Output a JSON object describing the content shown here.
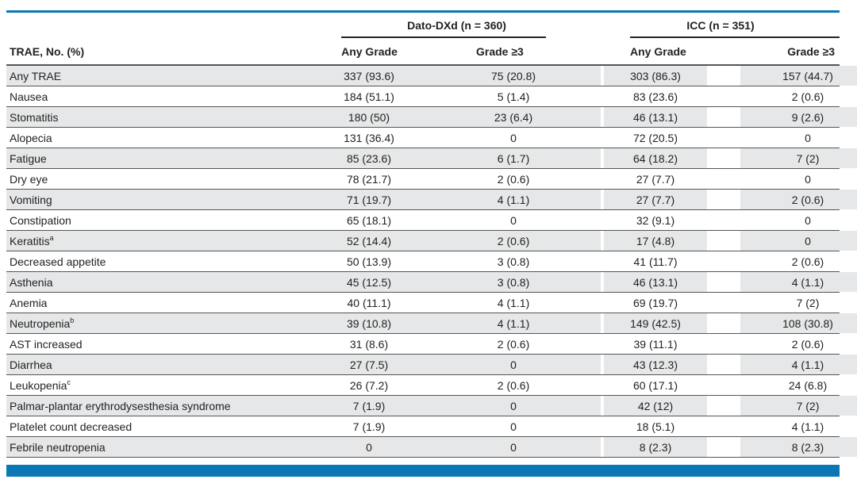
{
  "table": {
    "groups": [
      {
        "label": "Dato-DXd (n = 360)"
      },
      {
        "label": "ICC (n = 351)"
      }
    ],
    "columns": [
      "TRAE, No. (%)",
      "Any Grade",
      "Grade ≥3",
      "Any Grade",
      "Grade ≥3"
    ],
    "rows": [
      {
        "label": "Any TRAE",
        "sup": "",
        "values": [
          "337 (93.6)",
          "75 (20.8)",
          "303 (86.3)",
          "157 (44.7)"
        ]
      },
      {
        "label": "Nausea",
        "sup": "",
        "values": [
          "184 (51.1)",
          "5 (1.4)",
          "83 (23.6)",
          "2 (0.6)"
        ]
      },
      {
        "label": "Stomatitis",
        "sup": "",
        "values": [
          "180 (50)",
          "23 (6.4)",
          "46 (13.1)",
          "9 (2.6)"
        ]
      },
      {
        "label": "Alopecia",
        "sup": "",
        "values": [
          "131 (36.4)",
          "0",
          "72 (20.5)",
          "0"
        ]
      },
      {
        "label": "Fatigue",
        "sup": "",
        "values": [
          "85 (23.6)",
          "6 (1.7)",
          "64 (18.2)",
          "7 (2)"
        ]
      },
      {
        "label": "Dry eye",
        "sup": "",
        "values": [
          "78 (21.7)",
          "2 (0.6)",
          "27 (7.7)",
          "0"
        ]
      },
      {
        "label": "Vomiting",
        "sup": "",
        "values": [
          "71 (19.7)",
          "4 (1.1)",
          "27 (7.7)",
          "2 (0.6)"
        ]
      },
      {
        "label": "Constipation",
        "sup": "",
        "values": [
          "65 (18.1)",
          "0",
          "32 (9.1)",
          "0"
        ]
      },
      {
        "label": "Keratitis",
        "sup": "a",
        "values": [
          "52 (14.4)",
          "2 (0.6)",
          "17 (4.8)",
          "0"
        ]
      },
      {
        "label": "Decreased appetite",
        "sup": "",
        "values": [
          "50 (13.9)",
          "3 (0.8)",
          "41 (11.7)",
          "2 (0.6)"
        ]
      },
      {
        "label": "Asthenia",
        "sup": "",
        "values": [
          "45 (12.5)",
          "3 (0.8)",
          "46 (13.1)",
          "4 (1.1)"
        ]
      },
      {
        "label": "Anemia",
        "sup": "",
        "values": [
          "40 (11.1)",
          "4 (1.1)",
          "69 (19.7)",
          "7 (2)"
        ]
      },
      {
        "label": "Neutropenia",
        "sup": "b",
        "values": [
          "39 (10.8)",
          "4 (1.1)",
          "149 (42.5)",
          "108 (30.8)"
        ]
      },
      {
        "label": "AST increased",
        "sup": "",
        "values": [
          "31 (8.6)",
          "2 (0.6)",
          "39 (11.1)",
          "2 (0.6)"
        ]
      },
      {
        "label": "Diarrhea",
        "sup": "",
        "values": [
          "27 (7.5)",
          "0",
          "43 (12.3)",
          "4 (1.1)"
        ]
      },
      {
        "label": "Leukopenia",
        "sup": "c",
        "values": [
          "26 (7.2)",
          "2 (0.6)",
          "60 (17.1)",
          "24 (6.8)"
        ]
      },
      {
        "label": "Palmar-plantar erythrodysesthesia syndrome",
        "sup": "",
        "values": [
          "7 (1.9)",
          "0",
          "42 (12)",
          "7 (2)"
        ]
      },
      {
        "label": "Platelet count decreased",
        "sup": "",
        "values": [
          "7 (1.9)",
          "0",
          "18 (5.1)",
          "4 (1.1)"
        ]
      },
      {
        "label": "Febrile neutropenia",
        "sup": "",
        "values": [
          "0",
          "0",
          "8 (2.3)",
          "8 (2.3)"
        ]
      }
    ]
  },
  "colors": {
    "accent": "#0b78b5",
    "row_shade": "#e6e7e8"
  }
}
